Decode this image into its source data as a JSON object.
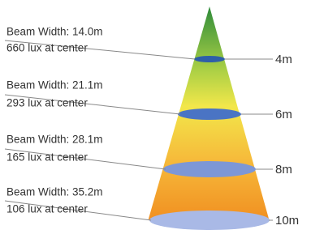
{
  "items": [
    {
      "beam_width": "Beam Width: 14.0m",
      "lux": "660 lux at center",
      "distance": "4m"
    },
    {
      "beam_width": "Beam Width: 21.1m",
      "lux": "293 lux at center",
      "distance": "6m"
    },
    {
      "beam_width": "Beam Width: 28.1m",
      "lux": "165 lux at center",
      "distance": "8m"
    },
    {
      "beam_width": "Beam Width: 35.2m",
      "lux": "106 lux at center",
      "distance": "10m"
    }
  ]
}
